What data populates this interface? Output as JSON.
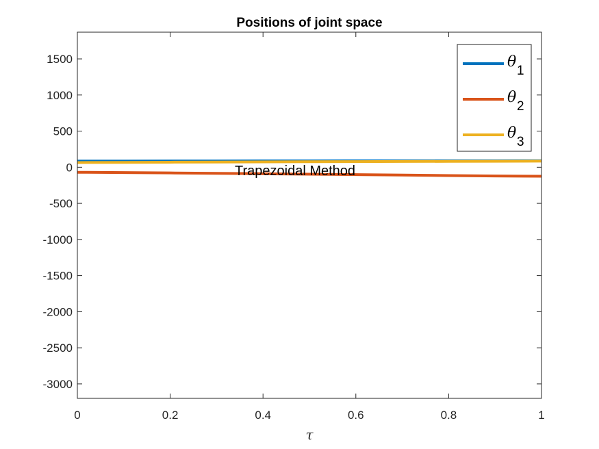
{
  "chart_data": {
    "type": "line",
    "title": "Positions of joint space",
    "xlabel": "τ",
    "ylabel": "",
    "xlim": [
      0,
      1
    ],
    "ylim": [
      -3200,
      1870
    ],
    "xticks": [
      0,
      0.2,
      0.4,
      0.6,
      0.8,
      1
    ],
    "xtick_labels": [
      "0",
      "0.2",
      "0.4",
      "0.6",
      "0.8",
      "1"
    ],
    "yticks": [
      1500,
      1000,
      500,
      0,
      -500,
      -1000,
      -1500,
      -2000,
      -2500,
      -3000
    ],
    "ytick_labels": [
      "1500",
      "1000",
      "500",
      "0",
      "-500",
      "-1000",
      "-1500",
      "-2000",
      "-2500",
      "-3000"
    ],
    "grid": false,
    "legend_location": "top-right",
    "annotation": "Trapezoidal Method",
    "x": [
      0,
      0.1,
      0.2,
      0.3,
      0.4,
      0.5,
      0.6,
      0.7,
      0.8,
      0.9,
      1
    ],
    "series": [
      {
        "name": "θ1",
        "legend_symbol": "θ",
        "legend_subscript": "1",
        "color": "#0072BD",
        "values": [
          85,
          85,
          86,
          86,
          87,
          87,
          88,
          88,
          89,
          89,
          90
        ]
      },
      {
        "name": "θ2",
        "legend_symbol": "θ",
        "legend_subscript": "2",
        "color": "#D95319",
        "values": [
          -70,
          -74,
          -79,
          -84,
          -90,
          -96,
          -102,
          -108,
          -115,
          -121,
          -125
        ]
      },
      {
        "name": "θ3",
        "legend_symbol": "θ",
        "legend_subscript": "3",
        "color": "#EDB120",
        "values": [
          65,
          67,
          70,
          72,
          74,
          76,
          78,
          80,
          81,
          83,
          85
        ]
      }
    ]
  }
}
